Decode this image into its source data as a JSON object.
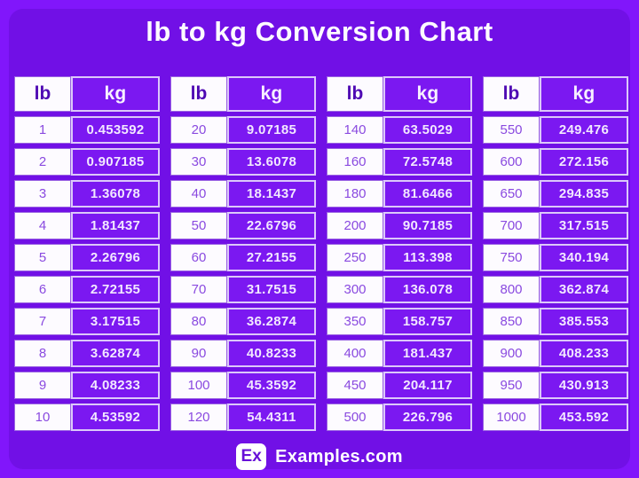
{
  "title": "lb to kg Conversion Chart",
  "colors": {
    "outer_background": "#8116fb",
    "panel_background": "#7110e6",
    "white_cell": "#fdfbff",
    "kg_cell_background": "#7b18f1",
    "kg_cell_border": "#dcc8fa",
    "lb_header_text": "#4e09b3",
    "lb_value_text": "#8a4ae0",
    "kg_value_text": "#f2e8ff",
    "title_text": "#ffffff",
    "logo_text": "#6710d8"
  },
  "chart_data": {
    "type": "table",
    "title": "lb to kg Conversion Chart",
    "columns": [
      "lb",
      "kg"
    ],
    "tables": [
      {
        "rows": [
          [
            "1",
            "0.453592"
          ],
          [
            "2",
            "0.907185"
          ],
          [
            "3",
            "1.36078"
          ],
          [
            "4",
            "1.81437"
          ],
          [
            "5",
            "2.26796"
          ],
          [
            "6",
            "2.72155"
          ],
          [
            "7",
            "3.17515"
          ],
          [
            "8",
            "3.62874"
          ],
          [
            "9",
            "4.08233"
          ],
          [
            "10",
            "4.53592"
          ]
        ]
      },
      {
        "rows": [
          [
            "20",
            "9.07185"
          ],
          [
            "30",
            "13.6078"
          ],
          [
            "40",
            "18.1437"
          ],
          [
            "50",
            "22.6796"
          ],
          [
            "60",
            "27.2155"
          ],
          [
            "70",
            "31.7515"
          ],
          [
            "80",
            "36.2874"
          ],
          [
            "90",
            "40.8233"
          ],
          [
            "100",
            "45.3592"
          ],
          [
            "120",
            "54.4311"
          ]
        ]
      },
      {
        "rows": [
          [
            "140",
            "63.5029"
          ],
          [
            "160",
            "72.5748"
          ],
          [
            "180",
            "81.6466"
          ],
          [
            "200",
            "90.7185"
          ],
          [
            "250",
            "113.398"
          ],
          [
            "300",
            "136.078"
          ],
          [
            "350",
            "158.757"
          ],
          [
            "400",
            "181.437"
          ],
          [
            "450",
            "204.117"
          ],
          [
            "500",
            "226.796"
          ]
        ]
      },
      {
        "rows": [
          [
            "550",
            "249.476"
          ],
          [
            "600",
            "272.156"
          ],
          [
            "650",
            "294.835"
          ],
          [
            "700",
            "317.515"
          ],
          [
            "750",
            "340.194"
          ],
          [
            "800",
            "362.874"
          ],
          [
            "850",
            "385.553"
          ],
          [
            "900",
            "408.233"
          ],
          [
            "950",
            "430.913"
          ],
          [
            "1000",
            "453.592"
          ]
        ]
      }
    ]
  },
  "footer": {
    "logo_text": "Ex",
    "site_name": "Examples.com"
  }
}
